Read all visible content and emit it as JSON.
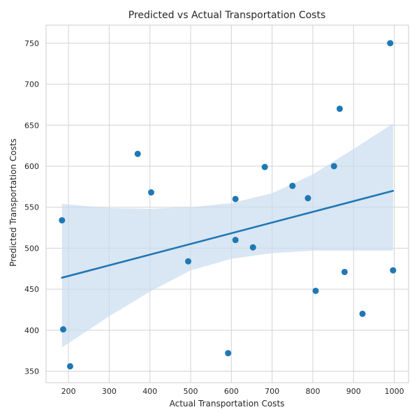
{
  "chart_data": {
    "type": "scatter",
    "title": "Predicted vs Actual Transportation Costs",
    "xlabel": "Actual Transportation Costs",
    "ylabel": "Predicted Transportation Costs",
    "xlim": [
      145,
      1035
    ],
    "ylim": [
      336,
      772
    ],
    "xticks": [
      200,
      300,
      400,
      500,
      600,
      700,
      800,
      900,
      1000
    ],
    "yticks": [
      350,
      400,
      450,
      500,
      550,
      600,
      650,
      700,
      750
    ],
    "grid": true,
    "points": [
      {
        "x": 990,
        "y": 750
      },
      {
        "x": 866,
        "y": 670
      },
      {
        "x": 370,
        "y": 615
      },
      {
        "x": 682,
        "y": 599
      },
      {
        "x": 852,
        "y": 600
      },
      {
        "x": 750,
        "y": 576
      },
      {
        "x": 403,
        "y": 568
      },
      {
        "x": 610,
        "y": 560
      },
      {
        "x": 788,
        "y": 561
      },
      {
        "x": 184,
        "y": 534
      },
      {
        "x": 610,
        "y": 510
      },
      {
        "x": 653,
        "y": 501
      },
      {
        "x": 494,
        "y": 484
      },
      {
        "x": 878,
        "y": 471
      },
      {
        "x": 997,
        "y": 473
      },
      {
        "x": 807,
        "y": 448
      },
      {
        "x": 922,
        "y": 420
      },
      {
        "x": 187,
        "y": 401
      },
      {
        "x": 592,
        "y": 372
      },
      {
        "x": 204,
        "y": 356
      }
    ],
    "regression": {
      "x_range": [
        184,
        997
      ],
      "line": [
        [
          184,
          464
        ],
        [
          997,
          570
        ]
      ],
      "ci_upper": [
        [
          184,
          554
        ],
        [
          300,
          549
        ],
        [
          400,
          548
        ],
        [
          500,
          550
        ],
        [
          600,
          555
        ],
        [
          700,
          567
        ],
        [
          800,
          590
        ],
        [
          900,
          621
        ],
        [
          997,
          652
        ]
      ],
      "ci_lower": [
        [
          184,
          379
        ],
        [
          300,
          417
        ],
        [
          400,
          447
        ],
        [
          500,
          473
        ],
        [
          600,
          487
        ],
        [
          700,
          494
        ],
        [
          800,
          497
        ],
        [
          900,
          497
        ],
        [
          997,
          497
        ]
      ]
    },
    "colors": {
      "point": "#1f77b4",
      "line": "#1f77b4",
      "band": "#c9dcee",
      "grid": "#d3d3d3",
      "axes": "#cccccc",
      "text": "#262626"
    }
  }
}
